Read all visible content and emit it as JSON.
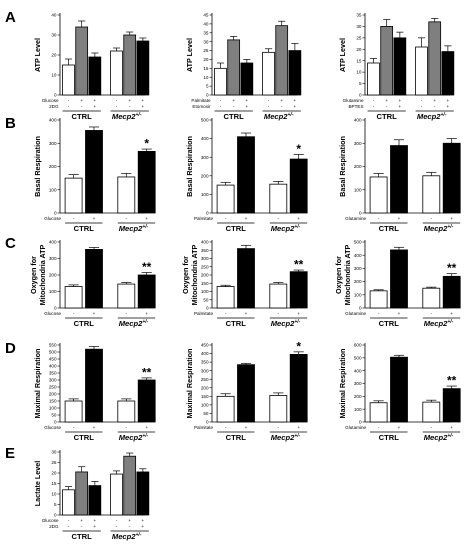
{
  "figure": {
    "group_labels": [
      "CTRL",
      "Mecp2",
      "+/-"
    ],
    "fill_colors": {
      "white": "#ffffff",
      "gray": "#7f7f7f",
      "black": "#000000"
    }
  },
  "chart_data": [
    {
      "id": "A1",
      "type": "bar",
      "panel": "A",
      "ylabel": "ATP Level",
      "ylim": [
        0,
        40
      ],
      "yticks": [
        0,
        10,
        20,
        30,
        40
      ],
      "fills": [
        "white",
        "gray",
        "black",
        "white",
        "gray",
        "black"
      ],
      "values": [
        15,
        34,
        19,
        22,
        30,
        27
      ],
      "errors": [
        3,
        3,
        2,
        1.5,
        1.5,
        1.5
      ],
      "conditions": [
        {
          "label": "Glucose",
          "signs": [
            "-",
            "+",
            "+",
            "-",
            "+",
            "+"
          ]
        },
        {
          "label": "2DG",
          "signs": [
            "-",
            "-",
            "+",
            "-",
            "-",
            "+"
          ]
        }
      ],
      "significance": [
        "",
        "",
        "",
        "",
        "",
        ""
      ]
    },
    {
      "id": "A2",
      "type": "bar",
      "panel": "",
      "ylabel": "ATP Level",
      "ylim": [
        0,
        45
      ],
      "yticks": [
        0,
        5,
        10,
        15,
        20,
        25,
        30,
        35,
        40,
        45
      ],
      "fills": [
        "white",
        "gray",
        "black",
        "white",
        "gray",
        "black"
      ],
      "values": [
        15,
        31,
        18,
        24,
        39,
        25
      ],
      "errors": [
        3,
        2,
        2,
        2,
        2.5,
        4
      ],
      "conditions": [
        {
          "label": "Palmitate",
          "signs": [
            "-",
            "+",
            "+",
            "-",
            "+",
            "+"
          ]
        },
        {
          "label": "Etomoxir",
          "signs": [
            "-",
            "-",
            "+",
            "-",
            "-",
            "+"
          ]
        }
      ],
      "significance": [
        "",
        "",
        "",
        "",
        "",
        ""
      ]
    },
    {
      "id": "A3",
      "type": "bar",
      "panel": "",
      "ylabel": "ATP Level",
      "ylim": [
        0,
        35
      ],
      "yticks": [
        0,
        5,
        10,
        15,
        20,
        25,
        30,
        35
      ],
      "fills": [
        "white",
        "gray",
        "black",
        "white",
        "gray",
        "black"
      ],
      "values": [
        14,
        30,
        25,
        21,
        32,
        19
      ],
      "errors": [
        2,
        3,
        2.5,
        4,
        1.5,
        2.5
      ],
      "conditions": [
        {
          "label": "Glutamine",
          "signs": [
            "-",
            "+",
            "+",
            "-",
            "+",
            "+"
          ]
        },
        {
          "label": "BPTES",
          "signs": [
            "-",
            "-",
            "+",
            "-",
            "-",
            "+"
          ]
        }
      ],
      "significance": [
        "",
        "",
        "",
        "",
        "",
        ""
      ]
    },
    {
      "id": "B1",
      "type": "bar",
      "panel": "B",
      "ylabel": "Basal Respiration",
      "ylim": [
        0,
        400
      ],
      "yticks": [
        0,
        100,
        200,
        300,
        400
      ],
      "fills": [
        "white",
        "black",
        "white",
        "black"
      ],
      "values": [
        150,
        355,
        155,
        265
      ],
      "errors": [
        15,
        15,
        15,
        10
      ],
      "conditions": [
        {
          "label": "Glucose",
          "signs": [
            "-",
            "+",
            "-",
            "+"
          ]
        }
      ],
      "significance": [
        "",
        "",
        "",
        "*"
      ]
    },
    {
      "id": "B2",
      "type": "bar",
      "panel": "",
      "ylabel": "Basal Respiration",
      "ylim": [
        0,
        500
      ],
      "yticks": [
        0,
        100,
        200,
        300,
        400,
        500
      ],
      "fills": [
        "white",
        "black",
        "white",
        "black"
      ],
      "values": [
        150,
        410,
        155,
        290
      ],
      "errors": [
        15,
        20,
        15,
        25
      ],
      "conditions": [
        {
          "label": "Palmitate",
          "signs": [
            "-",
            "+",
            "-",
            "+"
          ]
        }
      ],
      "significance": [
        "",
        "",
        "",
        "*"
      ]
    },
    {
      "id": "B3",
      "type": "bar",
      "panel": "",
      "ylabel": "Basal Respiration",
      "ylim": [
        0,
        400
      ],
      "yticks": [
        0,
        100,
        200,
        300,
        400
      ],
      "fills": [
        "white",
        "black",
        "white",
        "black"
      ],
      "values": [
        155,
        290,
        160,
        300
      ],
      "errors": [
        15,
        25,
        15,
        20
      ],
      "conditions": [
        {
          "label": "Glutamine",
          "signs": [
            "-",
            "+",
            "-",
            "+"
          ]
        }
      ],
      "significance": [
        "",
        "",
        "",
        ""
      ]
    },
    {
      "id": "C1",
      "type": "bar",
      "panel": "C",
      "ylabel": "Oxygen for Mitochondria ATP",
      "ylim": [
        0,
        400
      ],
      "yticks": [
        0,
        100,
        200,
        300,
        400
      ],
      "fills": [
        "white",
        "black",
        "white",
        "black"
      ],
      "values": [
        130,
        355,
        145,
        200
      ],
      "errors": [
        10,
        12,
        10,
        15
      ],
      "conditions": [
        {
          "label": "Glucose",
          "signs": [
            "-",
            "+",
            "-",
            "+"
          ]
        }
      ],
      "significance": [
        "",
        "",
        "",
        "**"
      ]
    },
    {
      "id": "C2",
      "type": "bar",
      "panel": "",
      "ylabel": "Oxygen for Mitochondria ATP",
      "ylim": [
        0,
        400
      ],
      "yticks": [
        0,
        50,
        100,
        150,
        200,
        250,
        300,
        350,
        400
      ],
      "fills": [
        "white",
        "black",
        "white",
        "black"
      ],
      "values": [
        130,
        360,
        145,
        220
      ],
      "errors": [
        8,
        20,
        10,
        10
      ],
      "conditions": [
        {
          "label": "Palmitate",
          "signs": [
            "-",
            "+",
            "-",
            "+"
          ]
        }
      ],
      "significance": [
        "",
        "",
        "",
        "**"
      ]
    },
    {
      "id": "C3",
      "type": "bar",
      "panel": "",
      "ylabel": "Oxygen for Mitochondria ATP",
      "ylim": [
        0,
        500
      ],
      "yticks": [
        0,
        100,
        200,
        300,
        400,
        500
      ],
      "fills": [
        "white",
        "black",
        "white",
        "black"
      ],
      "values": [
        130,
        440,
        150,
        240
      ],
      "errors": [
        8,
        20,
        8,
        20
      ],
      "conditions": [
        {
          "label": "Glutamine",
          "signs": [
            "-",
            "+",
            "-",
            "+"
          ]
        }
      ],
      "significance": [
        "",
        "",
        "",
        "**"
      ]
    },
    {
      "id": "D1",
      "type": "bar",
      "panel": "D",
      "ylabel": "Maximal Respiration",
      "ylim": [
        0,
        550
      ],
      "yticks": [
        0,
        50,
        100,
        150,
        200,
        250,
        300,
        350,
        400,
        450,
        500,
        550
      ],
      "fills": [
        "white",
        "black",
        "white",
        "black"
      ],
      "values": [
        150,
        520,
        150,
        300
      ],
      "errors": [
        15,
        20,
        15,
        15
      ],
      "conditions": [
        {
          "label": "Glucose",
          "signs": [
            "-",
            "+",
            "-",
            "+"
          ]
        }
      ],
      "significance": [
        "",
        "",
        "",
        "**"
      ]
    },
    {
      "id": "D2",
      "type": "bar",
      "panel": "",
      "ylabel": "Maximal Respiration",
      "ylim": [
        0,
        450
      ],
      "yticks": [
        0,
        50,
        100,
        150,
        200,
        250,
        300,
        350,
        400,
        450
      ],
      "fills": [
        "white",
        "black",
        "white",
        "black"
      ],
      "values": [
        150,
        335,
        155,
        395
      ],
      "errors": [
        15,
        8,
        15,
        15
      ],
      "conditions": [
        {
          "label": "Palmitate",
          "signs": [
            "-",
            "+",
            "-",
            "+"
          ]
        }
      ],
      "significance": [
        "",
        "",
        "",
        "*"
      ]
    },
    {
      "id": "D3",
      "type": "bar",
      "panel": "",
      "ylabel": "Maximal Respiration",
      "ylim": [
        0,
        600
      ],
      "yticks": [
        0,
        100,
        200,
        300,
        400,
        500,
        600
      ],
      "fills": [
        "white",
        "black",
        "white",
        "black"
      ],
      "values": [
        150,
        505,
        155,
        260
      ],
      "errors": [
        15,
        15,
        15,
        20
      ],
      "conditions": [
        {
          "label": "Glutamine",
          "signs": [
            "-",
            "+",
            "-",
            "+"
          ]
        }
      ],
      "significance": [
        "",
        "",
        "",
        "**"
      ]
    },
    {
      "id": "E1",
      "type": "bar",
      "panel": "E",
      "ylabel": "Lactate Level",
      "ylim": [
        0,
        30
      ],
      "yticks": [
        0,
        5,
        10,
        15,
        20,
        25,
        30
      ],
      "fills": [
        "white",
        "gray",
        "black",
        "white",
        "gray",
        "black"
      ],
      "values": [
        12,
        20.5,
        14,
        19.5,
        28,
        20.5
      ],
      "errors": [
        1.5,
        2.5,
        2,
        1.5,
        1.5,
        1.5
      ],
      "conditions": [
        {
          "label": "Glucose",
          "signs": [
            "-",
            "+",
            "+",
            "-",
            "+",
            "+"
          ]
        },
        {
          "label": "2DG",
          "signs": [
            "-",
            "-",
            "+",
            "-",
            "-",
            "+"
          ]
        }
      ],
      "significance": [
        "",
        "",
        "",
        "",
        "",
        ""
      ]
    }
  ]
}
